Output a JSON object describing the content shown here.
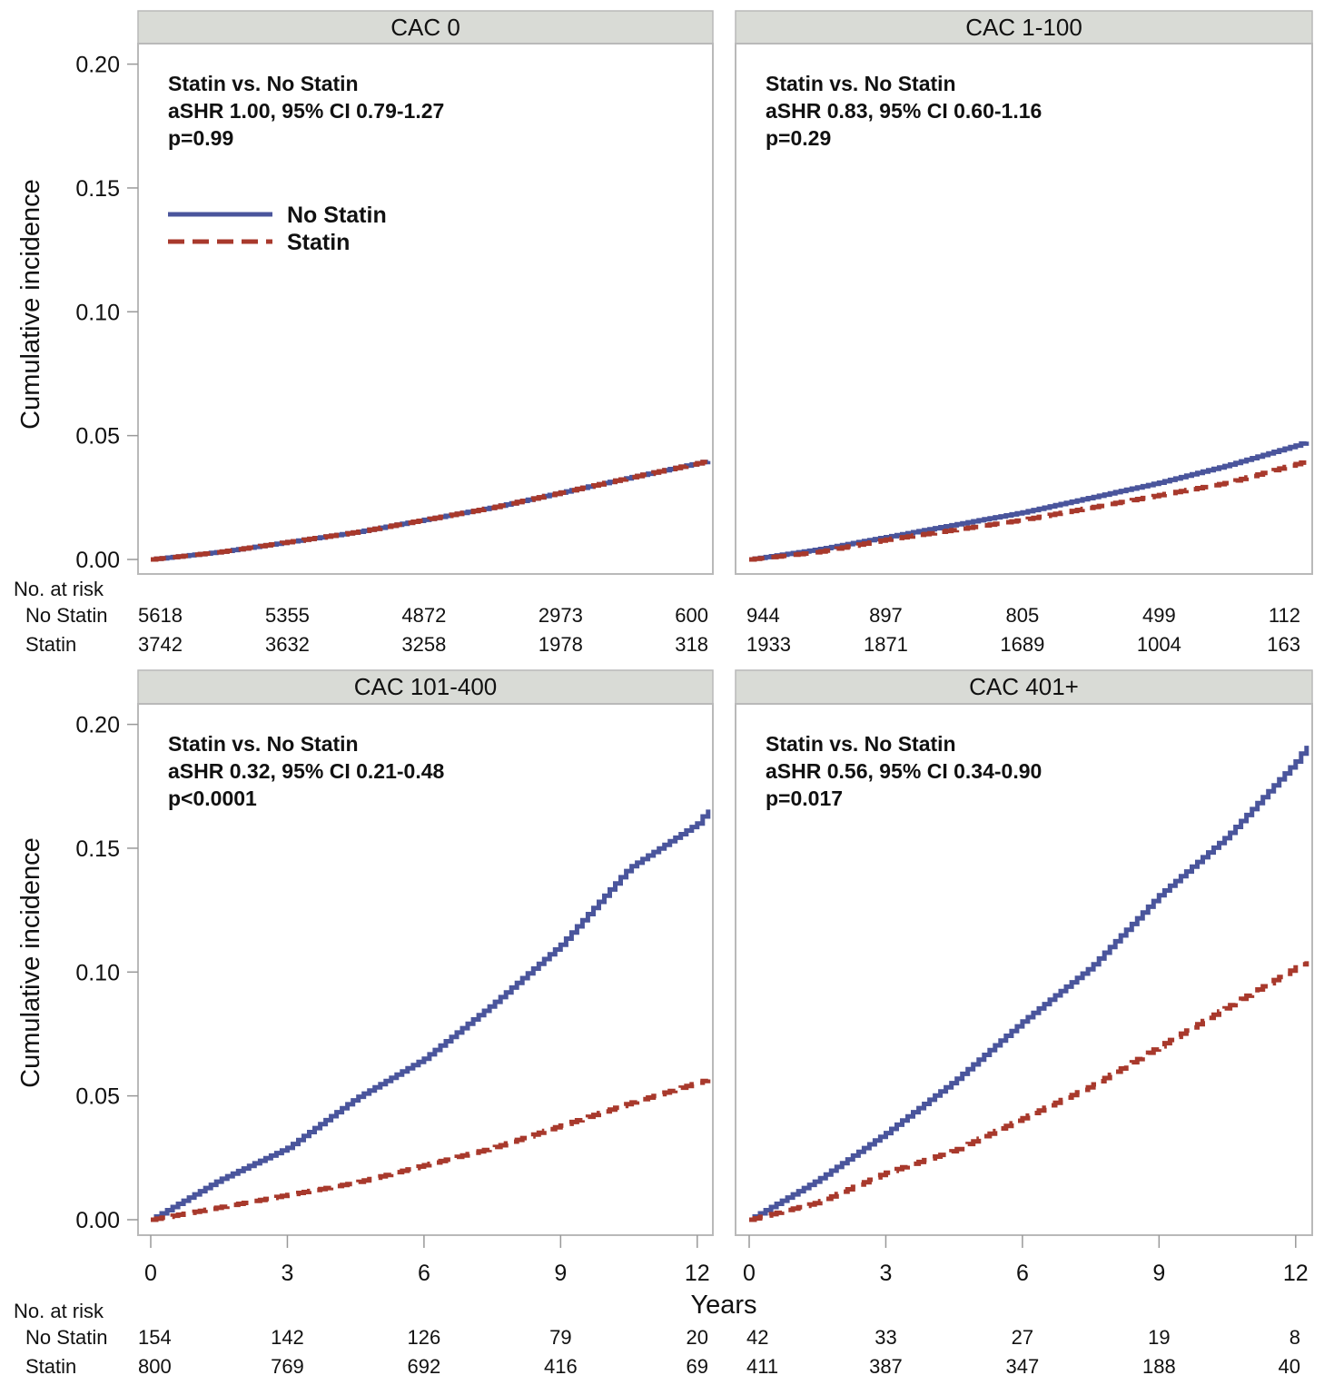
{
  "chart_data": {
    "type": "line",
    "subtype": "step cumulative incidence",
    "ylabel": "Cumulative incidence",
    "xlabel": "Years",
    "ylim": [
      0,
      0.2
    ],
    "yticks": [
      "0.00",
      "0.05",
      "0.10",
      "0.15",
      "0.20"
    ],
    "xlim": [
      0,
      12.3
    ],
    "xticks": [
      "0",
      "3",
      "6",
      "9",
      "12"
    ],
    "grid": false,
    "legend": {
      "placement": "top-left of first panel",
      "entries": [
        "No Statin",
        "Statin"
      ]
    },
    "colors": {
      "No Statin": "#4a559c",
      "Statin": "#a8392c",
      "header_bg": "#d9dbd6",
      "frame": "#b9b9b9"
    },
    "risk_title": "No. at risk",
    "risk_labels": [
      "No Statin",
      "Statin"
    ],
    "panels": [
      {
        "title": "CAC 0",
        "annotation": [
          "Statin vs. No Statin",
          "aSHR 1.00, 95% CI 0.79-1.27",
          "p=0.99"
        ],
        "series": [
          {
            "name": "No Statin",
            "x": [
              0,
              1.5,
              3,
              4.5,
              6,
              7.5,
              9,
              10.5,
              12.3
            ],
            "y": [
              0,
              0.003,
              0.007,
              0.011,
              0.016,
              0.021,
              0.027,
              0.033,
              0.04
            ]
          },
          {
            "name": "Statin",
            "x": [
              0,
              1.5,
              3,
              4.5,
              6,
              7.5,
              9,
              10.5,
              12.3
            ],
            "y": [
              0,
              0.003,
              0.007,
              0.011,
              0.016,
              0.021,
              0.027,
              0.033,
              0.04
            ]
          }
        ],
        "at_risk": {
          "No Statin": [
            "5618",
            "5355",
            "4872",
            "2973",
            "600"
          ],
          "Statin": [
            "3742",
            "3632",
            "3258",
            "1978",
            "318"
          ]
        }
      },
      {
        "title": "CAC 1-100",
        "annotation": [
          "Statin vs. No Statin",
          "aSHR 0.83, 95% CI 0.60-1.16",
          "p=0.29"
        ],
        "series": [
          {
            "name": "No Statin",
            "x": [
              0,
              1.5,
              3,
              4.5,
              6,
              7.5,
              9,
              10.5,
              12,
              12.3
            ],
            "y": [
              0,
              0.004,
              0.009,
              0.014,
              0.019,
              0.025,
              0.031,
              0.038,
              0.046,
              0.048
            ]
          },
          {
            "name": "Statin",
            "x": [
              0,
              1.5,
              3,
              4.5,
              6,
              7.5,
              9,
              10.5,
              12.3
            ],
            "y": [
              0,
              0.003,
              0.008,
              0.012,
              0.016,
              0.021,
              0.026,
              0.031,
              0.04
            ]
          }
        ],
        "at_risk": {
          "No Statin": [
            "944",
            "897",
            "805",
            "499",
            "112"
          ],
          "Statin": [
            "1933",
            "1871",
            "1689",
            "1004",
            "163"
          ]
        }
      },
      {
        "title": "CAC 101-400",
        "annotation": [
          "Statin vs. No Statin",
          "aSHR 0.32, 95% CI 0.21-0.48",
          "p<0.0001"
        ],
        "series": [
          {
            "name": "No Statin",
            "x": [
              0,
              1.5,
              3,
              4.5,
              6,
              7.5,
              9,
              10.5,
              12,
              12.3
            ],
            "y": [
              0,
              0.016,
              0.029,
              0.049,
              0.065,
              0.087,
              0.111,
              0.142,
              0.16,
              0.167
            ]
          },
          {
            "name": "Statin",
            "x": [
              0,
              1.5,
              3,
              4.5,
              6,
              7.5,
              9,
              10.5,
              12.3
            ],
            "y": [
              0,
              0.005,
              0.01,
              0.015,
              0.022,
              0.029,
              0.038,
              0.047,
              0.057
            ]
          }
        ],
        "at_risk": {
          "No Statin": [
            "154",
            "142",
            "126",
            "79",
            "20"
          ],
          "Statin": [
            "800",
            "769",
            "692",
            "416",
            "69"
          ]
        }
      },
      {
        "title": "CAC 401+",
        "annotation": [
          "Statin vs. No Statin",
          "aSHR 0.56, 95% CI 0.34-0.90",
          "p=0.017"
        ],
        "series": [
          {
            "name": "No Statin",
            "x": [
              0,
              1.5,
              3,
              4.5,
              6,
              7.5,
              9,
              10.5,
              12,
              12.3
            ],
            "y": [
              0,
              0.016,
              0.035,
              0.056,
              0.08,
              0.102,
              0.131,
              0.155,
              0.185,
              0.193
            ]
          },
          {
            "name": "Statin",
            "x": [
              0,
              1.5,
              3,
              4.5,
              6,
              7.5,
              9,
              10.5,
              12.3
            ],
            "y": [
              0,
              0.007,
              0.019,
              0.028,
              0.041,
              0.054,
              0.07,
              0.086,
              0.105
            ]
          }
        ],
        "at_risk": {
          "No Statin": [
            "42",
            "33",
            "27",
            "19",
            "8"
          ],
          "Statin": [
            "411",
            "387",
            "347",
            "188",
            "40"
          ]
        }
      }
    ]
  }
}
